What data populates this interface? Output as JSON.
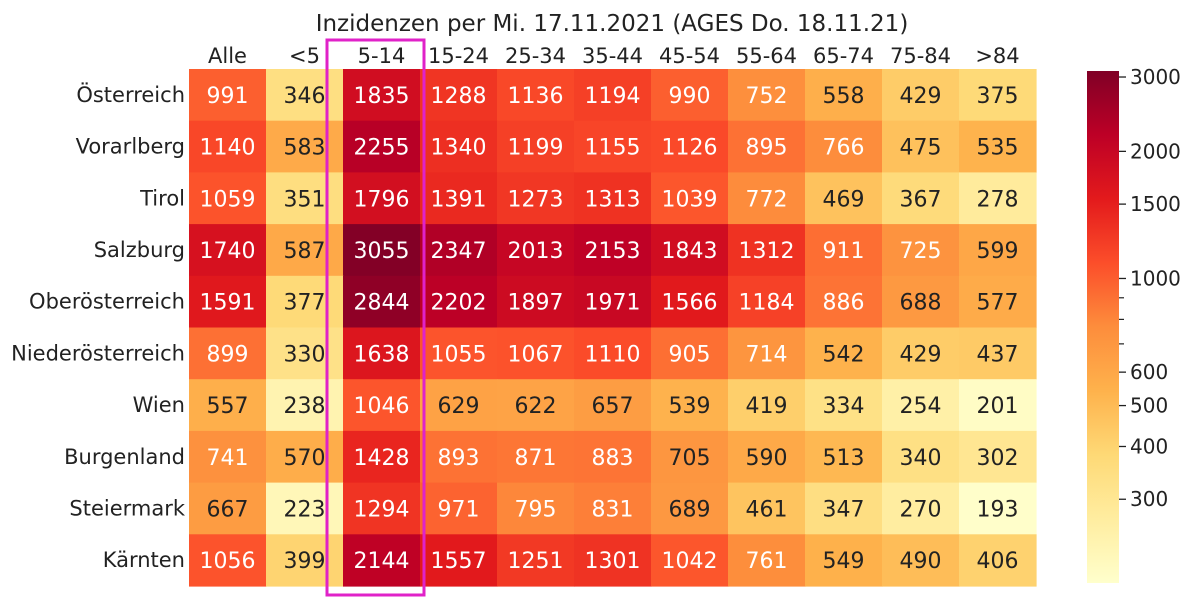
{
  "chart_data": {
    "type": "heatmap",
    "title": "Inzidenzen per Mi. 17.11.2021 (AGES Do. 18.11.21)",
    "columns": [
      "Alle",
      "<5",
      "5-14",
      "15-24",
      "25-34",
      "35-44",
      "45-54",
      "55-64",
      "65-74",
      "75-84",
      ">84"
    ],
    "rows": [
      "Österreich",
      "Vorarlberg",
      "Tirol",
      "Salzburg",
      "Oberösterreich",
      "Niederösterreich",
      "Wien",
      "Burgenland",
      "Steiermark",
      "Kärnten"
    ],
    "values": [
      [
        991,
        346,
        1835,
        1288,
        1136,
        1194,
        990,
        752,
        558,
        429,
        375
      ],
      [
        1140,
        583,
        2255,
        1340,
        1199,
        1155,
        1126,
        895,
        766,
        475,
        535
      ],
      [
        1059,
        351,
        1796,
        1391,
        1273,
        1313,
        1039,
        772,
        469,
        367,
        278
      ],
      [
        1740,
        587,
        3055,
        2347,
        2013,
        2153,
        1843,
        1312,
        911,
        725,
        599
      ],
      [
        1591,
        377,
        2844,
        2202,
        1897,
        1971,
        1566,
        1184,
        886,
        688,
        577
      ],
      [
        899,
        330,
        1638,
        1055,
        1067,
        1110,
        905,
        714,
        542,
        429,
        437
      ],
      [
        557,
        238,
        1046,
        629,
        622,
        657,
        539,
        419,
        334,
        254,
        201
      ],
      [
        741,
        570,
        1428,
        893,
        871,
        883,
        705,
        590,
        513,
        340,
        302
      ],
      [
        667,
        223,
        1294,
        971,
        795,
        831,
        689,
        461,
        347,
        270,
        193
      ],
      [
        1056,
        399,
        2144,
        1557,
        1251,
        1301,
        1042,
        761,
        549,
        490,
        406
      ]
    ],
    "colorbar": {
      "scale": "log",
      "range": [
        190,
        3100
      ],
      "major_ticks": [
        "3000",
        "2000",
        "1500",
        "1000",
        "600",
        "500",
        "400",
        "300"
      ],
      "minor_ticks": [
        900,
        800,
        700
      ],
      "colormap": "YlOrRd"
    },
    "highlight": {
      "column": "5-14",
      "color": "#e022c8"
    }
  }
}
